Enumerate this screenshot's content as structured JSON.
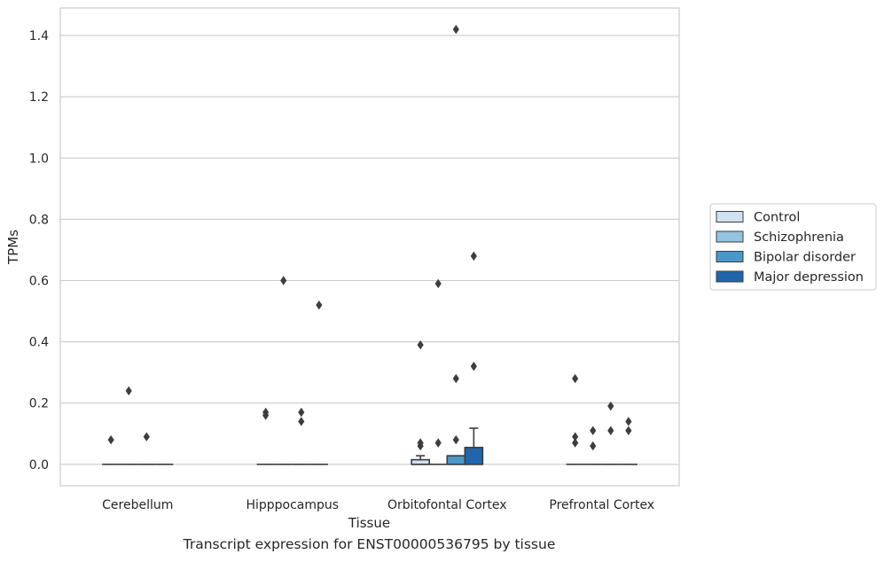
{
  "caption": "Transcript expression for ENST00000536795 by tissue",
  "chart_data": {
    "type": "box",
    "xlabel": "Tissue",
    "ylabel": "TPMs",
    "ylim": [
      -0.07,
      1.49
    ],
    "yticks": [
      0.0,
      0.2,
      0.4,
      0.6,
      0.8,
      1.0,
      1.2,
      1.4
    ],
    "ytick_labels": [
      "0.0",
      "0.2",
      "0.4",
      "0.6",
      "0.8",
      "1.0",
      "1.2",
      "1.4"
    ],
    "grid": "horizontal",
    "legend_position": "right",
    "categories": [
      "Cerebellum",
      "Hipppocampus",
      "Orbitofontal Cortex",
      "Prefrontal Cortex"
    ],
    "series": [
      {
        "name": "Control",
        "color": "#d0e1f2",
        "boxes": [
          {
            "q1": 0,
            "median": 0,
            "q3": 0,
            "whislo": 0,
            "whishi": 0,
            "fliers": [
              0.08
            ]
          },
          {
            "q1": 0,
            "median": 0,
            "q3": 0,
            "whislo": 0,
            "whishi": 0,
            "fliers": [
              0.16,
              0.17
            ]
          },
          {
            "q1": 0,
            "median": 0,
            "q3": 0.015,
            "whislo": 0,
            "whishi": 0.028,
            "fliers": [
              0.06,
              0.07,
              0.39
            ]
          },
          {
            "q1": 0,
            "median": 0,
            "q3": 0,
            "whislo": 0,
            "whishi": 0,
            "fliers": [
              0.07,
              0.09,
              0.28
            ]
          }
        ]
      },
      {
        "name": "Schizophrenia",
        "color": "#94c4df",
        "boxes": [
          {
            "q1": 0,
            "median": 0,
            "q3": 0,
            "whislo": 0,
            "whishi": 0,
            "fliers": [
              0.24
            ]
          },
          {
            "q1": 0,
            "median": 0,
            "q3": 0,
            "whislo": 0,
            "whishi": 0,
            "fliers": [
              0.6
            ]
          },
          {
            "q1": 0,
            "median": 0,
            "q3": 0,
            "whislo": 0,
            "whishi": 0,
            "fliers": [
              0.07,
              0.59
            ]
          },
          {
            "q1": 0,
            "median": 0,
            "q3": 0,
            "whislo": 0,
            "whishi": 0,
            "fliers": [
              0.06,
              0.11
            ]
          }
        ]
      },
      {
        "name": "Bipolar disorder",
        "color": "#4a98c9",
        "boxes": [
          {
            "q1": 0,
            "median": 0,
            "q3": 0,
            "whislo": 0,
            "whishi": 0,
            "fliers": [
              0.09
            ]
          },
          {
            "q1": 0,
            "median": 0,
            "q3": 0,
            "whislo": 0,
            "whishi": 0,
            "fliers": [
              0.14,
              0.17
            ]
          },
          {
            "q1": 0,
            "median": 0,
            "q3": 0.028,
            "whislo": 0,
            "whishi": 0.028,
            "fliers": [
              0.08,
              0.28,
              1.42
            ]
          },
          {
            "q1": 0,
            "median": 0,
            "q3": 0,
            "whislo": 0,
            "whishi": 0,
            "fliers": [
              0.11,
              0.19
            ]
          }
        ]
      },
      {
        "name": "Major depression",
        "color": "#2166ac",
        "boxes": [
          {
            "q1": 0,
            "median": 0,
            "q3": 0,
            "whislo": 0,
            "whishi": 0,
            "fliers": []
          },
          {
            "q1": 0,
            "median": 0,
            "q3": 0,
            "whislo": 0,
            "whishi": 0,
            "fliers": [
              0.52
            ]
          },
          {
            "q1": 0,
            "median": 0,
            "q3": 0.055,
            "whislo": 0,
            "whishi": 0.118,
            "fliers": [
              0.32,
              0.68
            ]
          },
          {
            "q1": 0,
            "median": 0,
            "q3": 0,
            "whislo": 0,
            "whishi": 0,
            "fliers": [
              0.11,
              0.14
            ]
          }
        ]
      }
    ]
  }
}
